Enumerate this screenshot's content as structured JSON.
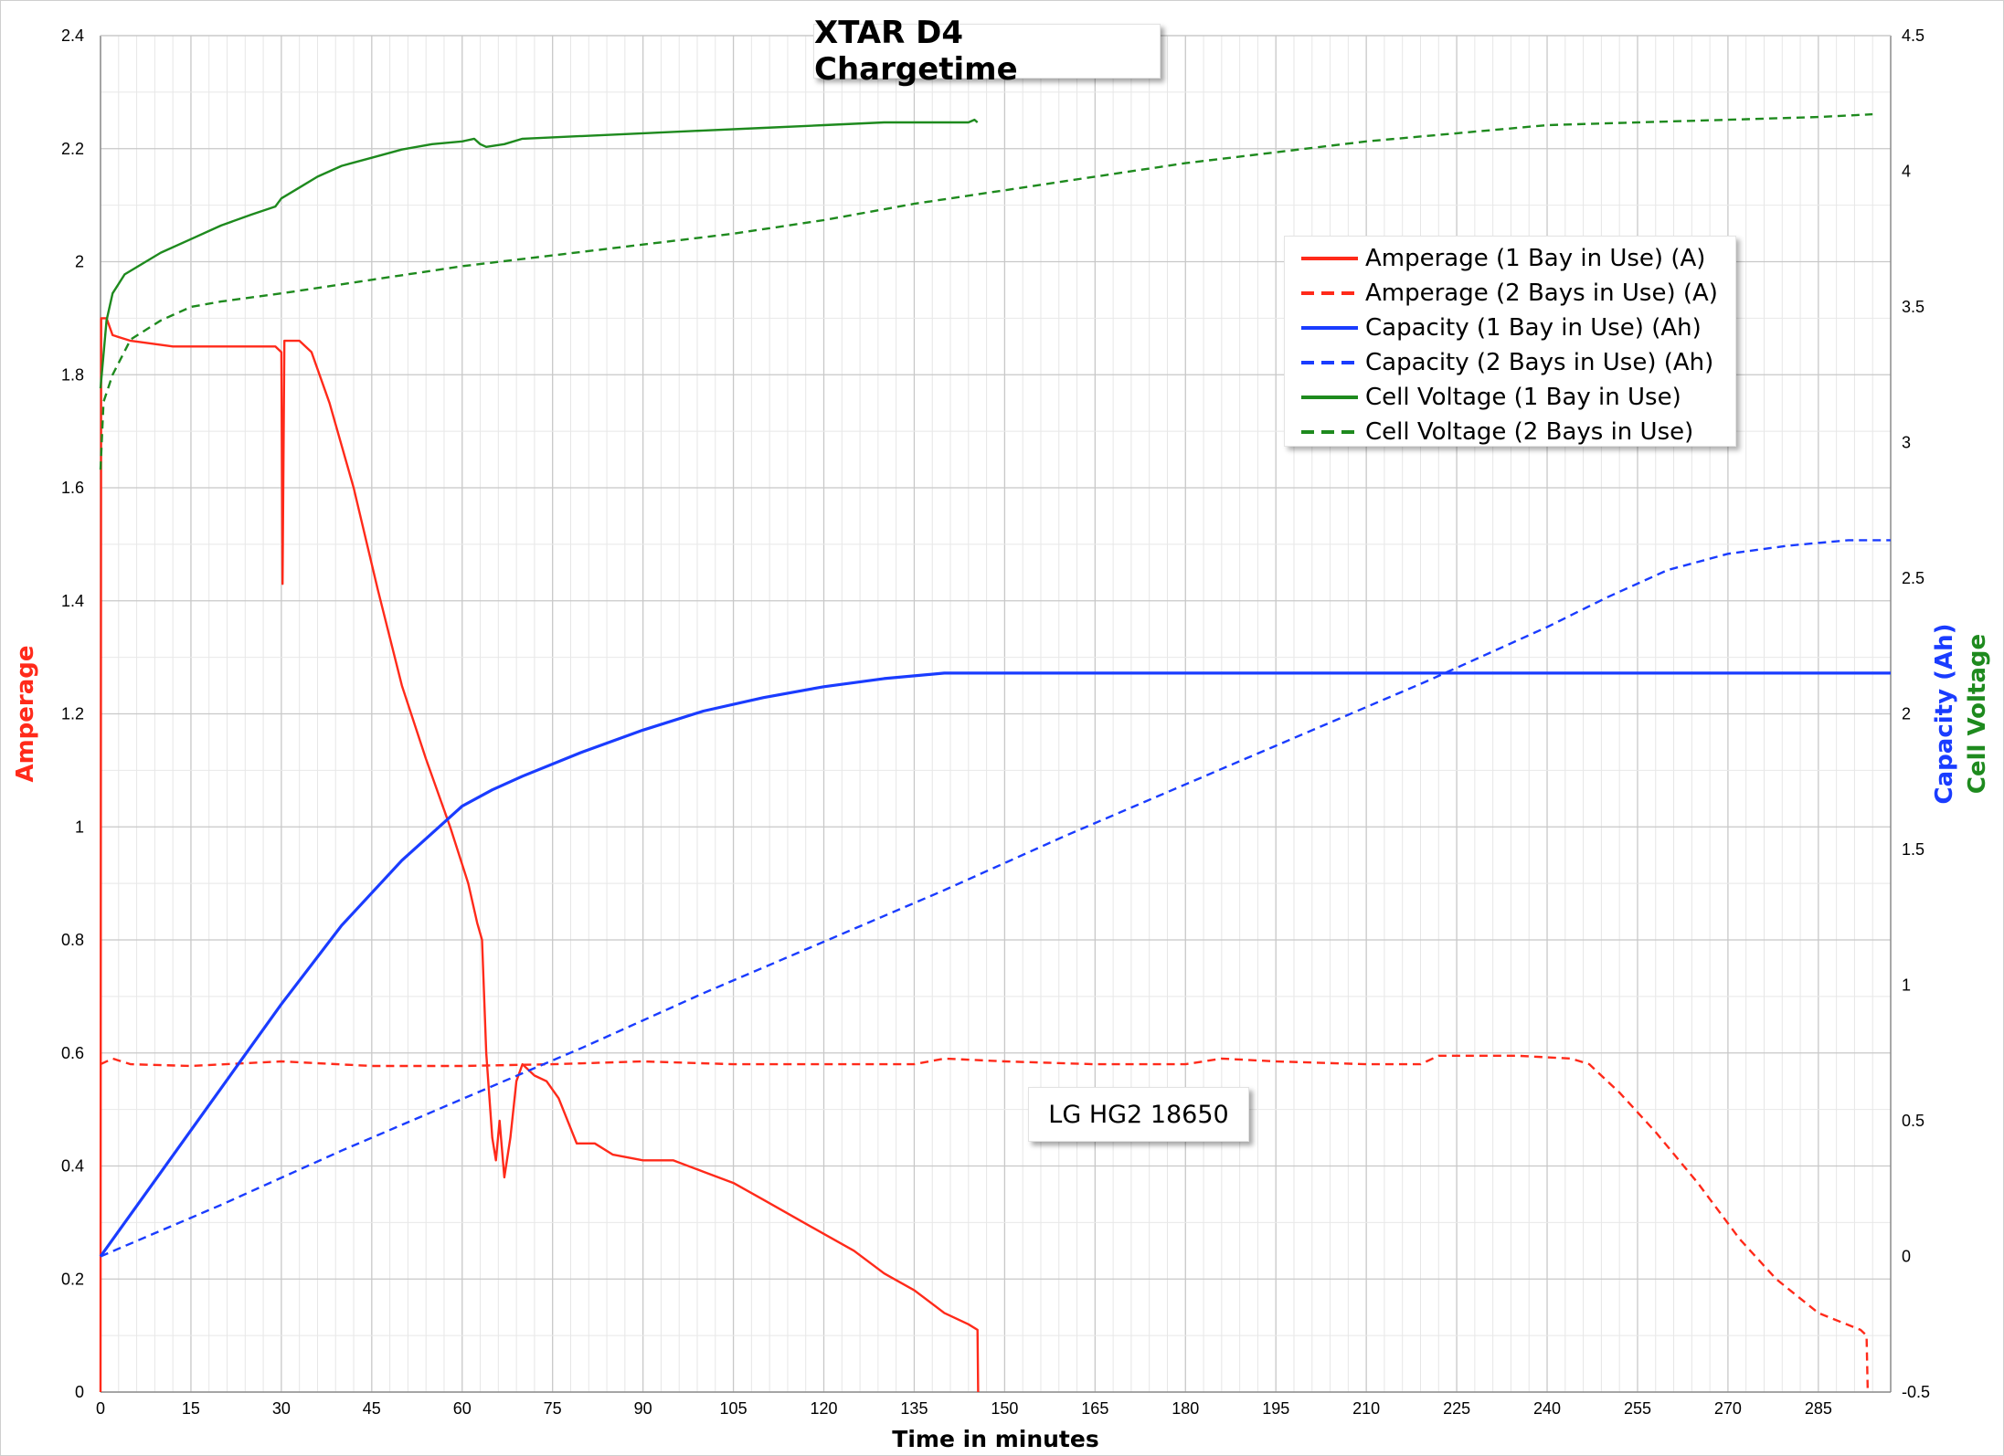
{
  "chart_data": {
    "type": "line",
    "title": "XTAR D4 Chargetime",
    "xlabel": "Time in minutes",
    "ylabel_left": "Amperage",
    "ylabel_right_1": "Capacity (Ah)",
    "ylabel_right_2": "Cell Voltage",
    "annotation": "LG HG2 18650",
    "xlim": [
      0,
      297
    ],
    "ylim_left": [
      0,
      2.4
    ],
    "ylim_right": [
      -0.5,
      4.5
    ],
    "grid": true,
    "legend_position": "top-right",
    "x_ticks": [
      "0",
      "15",
      "30",
      "45",
      "60",
      "75",
      "90",
      "105",
      "120",
      "135",
      "150",
      "165",
      "180",
      "195",
      "210",
      "225",
      "240",
      "255",
      "270",
      "285"
    ],
    "y_left_ticks": [
      "0",
      "0.2",
      "0.4",
      "0.6",
      "0.8",
      "1",
      "1.2",
      "1.4",
      "1.6",
      "1.8",
      "2",
      "2.2",
      "2.4"
    ],
    "y_right_ticks": [
      "-0.5",
      "0",
      "0.5",
      "1",
      "1.5",
      "2",
      "2.5",
      "3",
      "3.5",
      "4",
      "4.5"
    ],
    "series": [
      {
        "name": "Amperage (1 Bay in Use) (A)",
        "axis": "left",
        "color": "#ff2a1a",
        "dash": "solid",
        "points": [
          [
            0,
            0
          ],
          [
            0.1,
            1.9
          ],
          [
            1,
            1.9
          ],
          [
            2,
            1.87
          ],
          [
            5,
            1.86
          ],
          [
            12,
            1.85
          ],
          [
            29,
            1.85
          ],
          [
            30,
            1.84
          ],
          [
            30.2,
            1.43
          ],
          [
            30.5,
            1.86
          ],
          [
            33,
            1.86
          ],
          [
            35,
            1.84
          ],
          [
            38,
            1.75
          ],
          [
            42,
            1.6
          ],
          [
            46,
            1.42
          ],
          [
            50,
            1.25
          ],
          [
            54,
            1.12
          ],
          [
            58,
            1.0
          ],
          [
            61,
            0.9
          ],
          [
            62.5,
            0.83
          ],
          [
            63.3,
            0.8
          ],
          [
            64,
            0.6
          ],
          [
            65,
            0.45
          ],
          [
            65.6,
            0.41
          ],
          [
            66.2,
            0.48
          ],
          [
            67,
            0.38
          ],
          [
            68,
            0.45
          ],
          [
            69,
            0.55
          ],
          [
            70,
            0.58
          ],
          [
            72,
            0.56
          ],
          [
            74,
            0.55
          ],
          [
            76,
            0.52
          ],
          [
            79,
            0.44
          ],
          [
            82,
            0.44
          ],
          [
            85,
            0.42
          ],
          [
            90,
            0.41
          ],
          [
            95,
            0.41
          ],
          [
            100,
            0.39
          ],
          [
            105,
            0.37
          ],
          [
            110,
            0.34
          ],
          [
            115,
            0.31
          ],
          [
            120,
            0.28
          ],
          [
            125,
            0.25
          ],
          [
            130,
            0.21
          ],
          [
            135,
            0.18
          ],
          [
            140,
            0.14
          ],
          [
            144,
            0.12
          ],
          [
            145.5,
            0.11
          ],
          [
            145.6,
            0
          ]
        ]
      },
      {
        "name": "Amperage (2 Bays in Use) (A)",
        "axis": "left",
        "color": "#ff2a1a",
        "dash": "dashed",
        "points": [
          [
            0,
            0.58
          ],
          [
            2,
            0.59
          ],
          [
            5,
            0.58
          ],
          [
            15,
            0.577
          ],
          [
            30,
            0.585
          ],
          [
            45,
            0.577
          ],
          [
            60,
            0.577
          ],
          [
            75,
            0.58
          ],
          [
            90,
            0.585
          ],
          [
            105,
            0.58
          ],
          [
            120,
            0.58
          ],
          [
            135,
            0.58
          ],
          [
            140,
            0.59
          ],
          [
            150,
            0.585
          ],
          [
            165,
            0.58
          ],
          [
            180,
            0.58
          ],
          [
            186,
            0.59
          ],
          [
            195,
            0.585
          ],
          [
            210,
            0.58
          ],
          [
            219,
            0.58
          ],
          [
            222,
            0.595
          ],
          [
            235,
            0.595
          ],
          [
            244,
            0.59
          ],
          [
            247,
            0.58
          ],
          [
            252,
            0.53
          ],
          [
            258,
            0.46
          ],
          [
            265,
            0.37
          ],
          [
            272,
            0.27
          ],
          [
            278,
            0.2
          ],
          [
            285,
            0.14
          ],
          [
            292,
            0.11
          ],
          [
            293,
            0.1
          ],
          [
            293.2,
            0
          ]
        ]
      },
      {
        "name": "Capacity (1 Bay in Use) (Ah)",
        "axis": "right",
        "color": "#1a3cff",
        "dash": "solid",
        "points": [
          [
            0,
            0
          ],
          [
            10,
            0.31
          ],
          [
            20,
            0.62
          ],
          [
            30,
            0.93
          ],
          [
            40,
            1.22
          ],
          [
            50,
            1.46
          ],
          [
            60,
            1.66
          ],
          [
            65,
            1.72
          ],
          [
            70,
            1.77
          ],
          [
            80,
            1.86
          ],
          [
            90,
            1.94
          ],
          [
            100,
            2.01
          ],
          [
            110,
            2.06
          ],
          [
            120,
            2.1
          ],
          [
            130,
            2.13
          ],
          [
            140,
            2.15
          ],
          [
            145,
            2.15
          ],
          [
            297,
            2.15
          ]
        ]
      },
      {
        "name": "Capacity (2 Bays in Use) (Ah)",
        "axis": "right",
        "color": "#1a3cff",
        "dash": "dashed",
        "points": [
          [
            0,
            0
          ],
          [
            20,
            0.19
          ],
          [
            40,
            0.39
          ],
          [
            60,
            0.58
          ],
          [
            80,
            0.77
          ],
          [
            100,
            0.97
          ],
          [
            120,
            1.16
          ],
          [
            140,
            1.35
          ],
          [
            160,
            1.55
          ],
          [
            180,
            1.74
          ],
          [
            200,
            1.93
          ],
          [
            220,
            2.12
          ],
          [
            240,
            2.32
          ],
          [
            250,
            2.43
          ],
          [
            260,
            2.53
          ],
          [
            270,
            2.59
          ],
          [
            280,
            2.62
          ],
          [
            290,
            2.64
          ],
          [
            297,
            2.64
          ]
        ]
      },
      {
        "name": "Cell Voltage (1 Bay in Use)",
        "axis": "right",
        "color": "#1e8a1e",
        "dash": "solid",
        "points": [
          [
            0,
            3.2
          ],
          [
            1,
            3.45
          ],
          [
            2,
            3.55
          ],
          [
            4,
            3.62
          ],
          [
            7,
            3.66
          ],
          [
            10,
            3.7
          ],
          [
            15,
            3.75
          ],
          [
            20,
            3.8
          ],
          [
            25,
            3.84
          ],
          [
            29,
            3.87
          ],
          [
            30,
            3.9
          ],
          [
            33,
            3.94
          ],
          [
            36,
            3.98
          ],
          [
            40,
            4.02
          ],
          [
            45,
            4.05
          ],
          [
            50,
            4.08
          ],
          [
            55,
            4.1
          ],
          [
            60,
            4.11
          ],
          [
            62,
            4.12
          ],
          [
            63,
            4.1
          ],
          [
            64,
            4.09
          ],
          [
            67,
            4.1
          ],
          [
            70,
            4.12
          ],
          [
            80,
            4.13
          ],
          [
            90,
            4.14
          ],
          [
            100,
            4.15
          ],
          [
            110,
            4.16
          ],
          [
            120,
            4.17
          ],
          [
            130,
            4.18
          ],
          [
            140,
            4.18
          ],
          [
            144,
            4.18
          ],
          [
            145,
            4.19
          ],
          [
            145.5,
            4.18
          ]
        ]
      },
      {
        "name": "Cell Voltage (2 Bays in Use)",
        "axis": "right",
        "color": "#1e8a1e",
        "dash": "dashed",
        "points": [
          [
            0,
            2.9
          ],
          [
            0.5,
            3.15
          ],
          [
            2,
            3.25
          ],
          [
            5,
            3.38
          ],
          [
            10,
            3.45
          ],
          [
            15,
            3.5
          ],
          [
            20,
            3.52
          ],
          [
            30,
            3.55
          ],
          [
            45,
            3.6
          ],
          [
            60,
            3.65
          ],
          [
            75,
            3.69
          ],
          [
            90,
            3.73
          ],
          [
            105,
            3.77
          ],
          [
            120,
            3.82
          ],
          [
            135,
            3.88
          ],
          [
            150,
            3.93
          ],
          [
            165,
            3.98
          ],
          [
            180,
            4.03
          ],
          [
            195,
            4.07
          ],
          [
            210,
            4.11
          ],
          [
            225,
            4.14
          ],
          [
            240,
            4.17
          ],
          [
            255,
            4.18
          ],
          [
            270,
            4.19
          ],
          [
            285,
            4.2
          ],
          [
            294,
            4.21
          ]
        ]
      }
    ]
  }
}
